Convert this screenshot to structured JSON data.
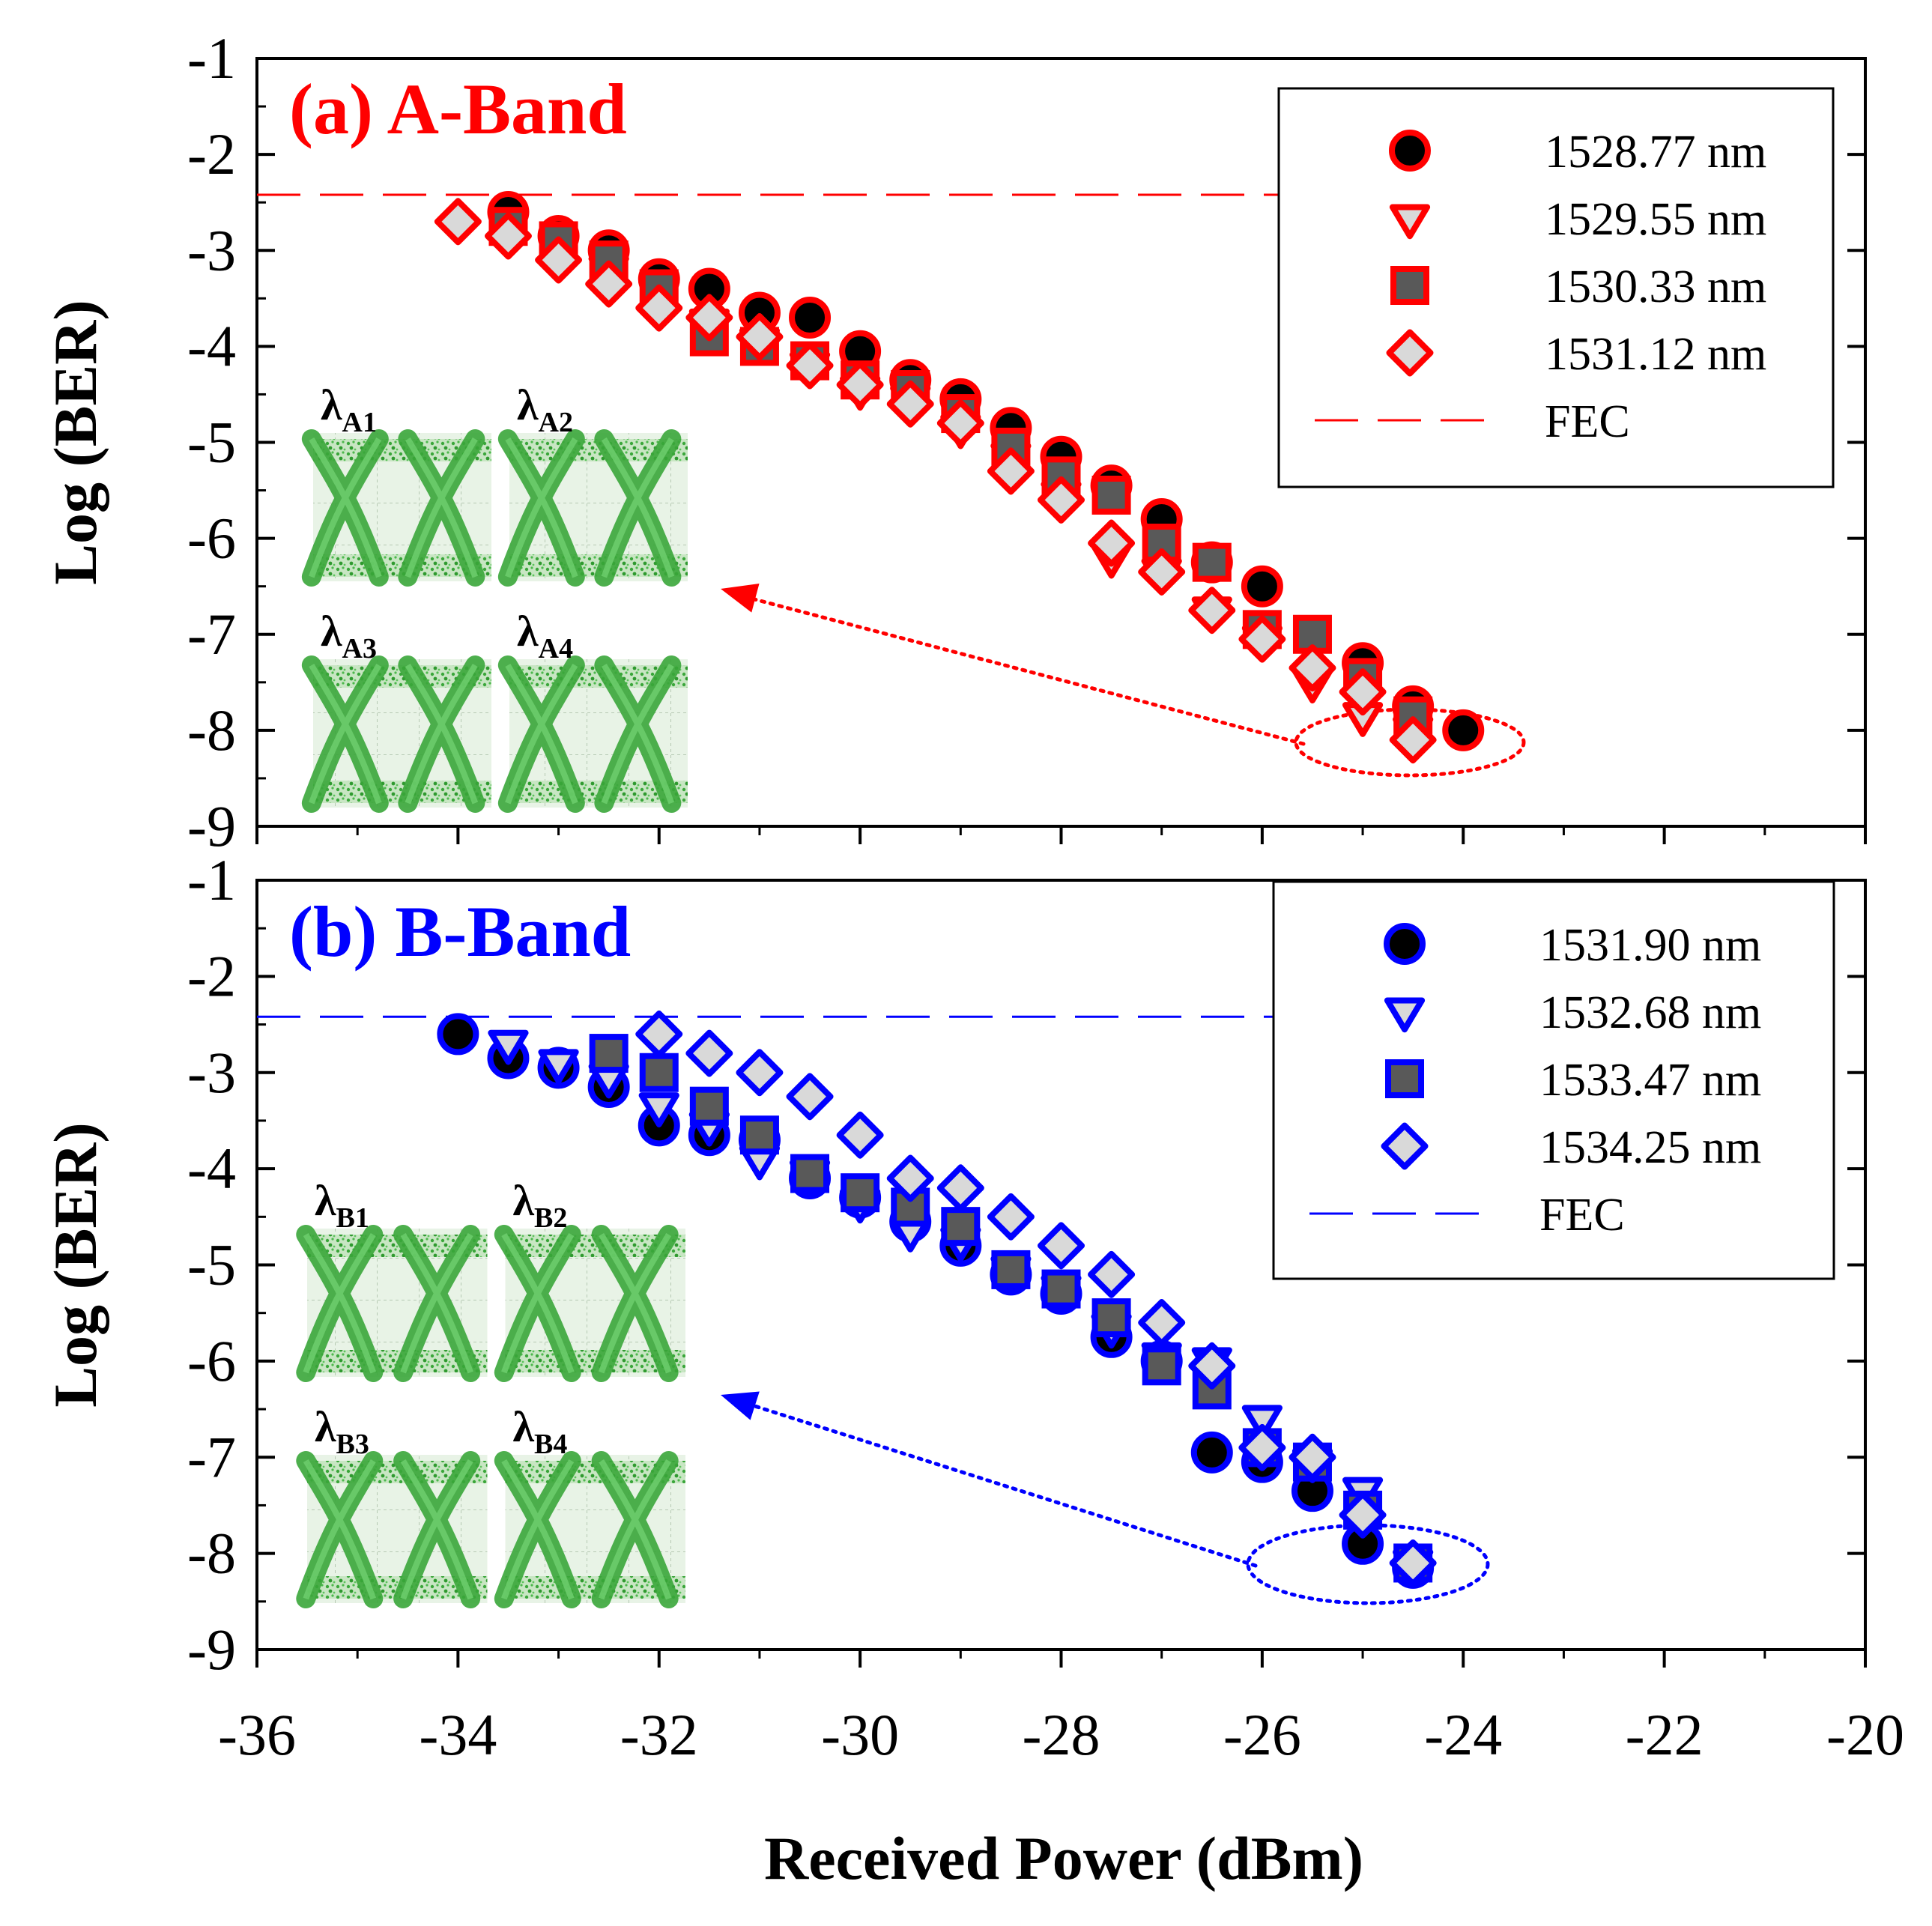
{
  "chart_data": [
    {
      "type": "scatter",
      "panel": "a",
      "title": "(a) A-Band",
      "title_color": "#ff0000",
      "accent": "#ff0000",
      "xlabel": "Received Power (dBm)",
      "ylabel": "Log (BER)",
      "xlim": [
        -36,
        -20
      ],
      "ylim": [
        -9,
        -1
      ],
      "xticks": [
        "-36",
        "-34",
        "-32",
        "-30",
        "-28",
        "-26",
        "-24",
        "-22",
        "-20"
      ],
      "yticks": [
        "-1",
        "-2",
        "-3",
        "-4",
        "-5",
        "-6",
        "-7",
        "-8",
        "-9"
      ],
      "fec_level": -2.42,
      "fec_label": "FEC",
      "legend_position": "top-right",
      "eye_labels": [
        {
          "main": "λ",
          "sub": "A1"
        },
        {
          "main": "λ",
          "sub": "A2"
        },
        {
          "main": "λ",
          "sub": "A3"
        },
        {
          "main": "λ",
          "sub": "A4"
        }
      ],
      "series": [
        {
          "name": "1528.77 nm",
          "marker": "circle",
          "fill": "#000000",
          "x": [
            -33.5,
            -33,
            -32.5,
            -32,
            -31.5,
            -31,
            -30.5,
            -30,
            -29.5,
            -29,
            -28.5,
            -28,
            -27.5,
            -27,
            -26.5,
            -26,
            -25,
            -24.5,
            -24
          ],
          "y": [
            -2.6,
            -2.85,
            -3.0,
            -3.3,
            -3.4,
            -3.65,
            -3.7,
            -4.05,
            -4.35,
            -4.55,
            -4.85,
            -5.15,
            -5.45,
            -5.8,
            -6.25,
            -6.5,
            -7.3,
            -7.75,
            -8.0
          ]
        },
        {
          "name": "1529.55 nm",
          "marker": "triangle-down",
          "fill": "#d9d9d9",
          "x": [
            -33.5,
            -33,
            -32.5,
            -32,
            -31.5,
            -31,
            -30.5,
            -30,
            -29.5,
            -29,
            -28.5,
            -28,
            -27.5,
            -27,
            -26.5,
            -26,
            -25.5,
            -25,
            -24.5
          ],
          "y": [
            -2.75,
            -2.95,
            -3.2,
            -3.4,
            -3.75,
            -3.95,
            -4.2,
            -4.45,
            -4.55,
            -4.85,
            -5.15,
            -5.55,
            -6.2,
            -6.35,
            -6.75,
            -7.05,
            -7.5,
            -7.85,
            -8.0
          ]
        },
        {
          "name": "1530.33 nm",
          "marker": "square",
          "fill": "#595959",
          "x": [
            -33.5,
            -33,
            -32.5,
            -32,
            -31.5,
            -31,
            -30.5,
            -30,
            -29.5,
            -29,
            -28.5,
            -28,
            -27.5,
            -27,
            -26.5,
            -26,
            -25.5,
            -25,
            -24.5
          ],
          "y": [
            -2.75,
            -2.9,
            -3.1,
            -3.4,
            -3.9,
            -4.0,
            -4.15,
            -4.35,
            -4.45,
            -4.7,
            -5.05,
            -5.35,
            -5.55,
            -6.05,
            -6.25,
            -6.95,
            -7.0,
            -7.45,
            -7.85
          ]
        },
        {
          "name": "1531.12 nm",
          "marker": "diamond",
          "fill": "#d9d9d9",
          "x": [
            -34,
            -33.5,
            -33,
            -32.5,
            -32,
            -31.5,
            -31,
            -30.5,
            -30,
            -29.5,
            -29,
            -28.5,
            -28,
            -27.5,
            -27,
            -26.5,
            -26,
            -25.5,
            -25,
            -24.5
          ],
          "y": [
            -2.7,
            -2.85,
            -3.1,
            -3.35,
            -3.6,
            -3.7,
            -3.9,
            -4.2,
            -4.4,
            -4.6,
            -4.8,
            -5.3,
            -5.6,
            -6.05,
            -6.35,
            -6.75,
            -7.05,
            -7.35,
            -7.6,
            -8.1
          ]
        }
      ]
    },
    {
      "type": "scatter",
      "panel": "b",
      "title": "(b) B-Band",
      "title_color": "#0000ff",
      "accent": "#0000ff",
      "xlabel": "Received Power (dBm)",
      "ylabel": "Log (BER)",
      "xlim": [
        -36,
        -20
      ],
      "ylim": [
        -9,
        -1
      ],
      "xticks": [
        "-36",
        "-34",
        "-32",
        "-30",
        "-28",
        "-26",
        "-24",
        "-22",
        "-20"
      ],
      "yticks": [
        "-1",
        "-2",
        "-3",
        "-4",
        "-5",
        "-6",
        "-7",
        "-8",
        "-9"
      ],
      "fec_level": -2.42,
      "fec_label": "FEC",
      "legend_position": "top-right",
      "eye_labels": [
        {
          "main": "λ",
          "sub": "B1"
        },
        {
          "main": "λ",
          "sub": "B2"
        },
        {
          "main": "λ",
          "sub": "B3"
        },
        {
          "main": "λ",
          "sub": "B4"
        }
      ],
      "series": [
        {
          "name": "1531.90 nm",
          "marker": "circle",
          "fill": "#000000",
          "x": [
            -34,
            -33.5,
            -33,
            -32.5,
            -32,
            -31.5,
            -31,
            -30.5,
            -30,
            -29.5,
            -29,
            -28.5,
            -28,
            -27.5,
            -27,
            -26.5,
            -26,
            -25.5,
            -25,
            -24.5
          ],
          "y": [
            -2.6,
            -2.85,
            -2.95,
            -3.15,
            -3.55,
            -3.65,
            -3.7,
            -4.1,
            -4.3,
            -4.55,
            -4.8,
            -5.1,
            -5.3,
            -5.75,
            -6.0,
            -6.95,
            -7.05,
            -7.35,
            -7.9,
            -8.15
          ]
        },
        {
          "name": "1532.68 nm",
          "marker": "triangle-down",
          "fill": "#d9d9d9",
          "x": [
            -33.5,
            -33,
            -32.5,
            -32,
            -31.5,
            -31,
            -30.5,
            -30,
            -29.5,
            -29,
            -28.5,
            -28,
            -27.5,
            -27,
            -26.5,
            -26,
            -25.5,
            -25,
            -24.5
          ],
          "y": [
            -2.7,
            -2.9,
            -3.05,
            -3.35,
            -3.55,
            -3.9,
            -4.05,
            -4.35,
            -4.65,
            -4.75,
            -5.05,
            -5.25,
            -5.65,
            -5.95,
            -6.0,
            -6.6,
            -7.05,
            -7.35,
            -8.1
          ]
        },
        {
          "name": "1533.47 nm",
          "marker": "square",
          "fill": "#595959",
          "x": [
            -32.5,
            -32,
            -31.5,
            -31,
            -30.5,
            -30,
            -29.5,
            -29,
            -28.5,
            -28,
            -27.5,
            -27,
            -26.5,
            -26,
            -25.5,
            -25,
            -24.5
          ],
          "y": [
            -2.8,
            -3.0,
            -3.35,
            -3.65,
            -4.05,
            -4.25,
            -4.4,
            -4.6,
            -5.05,
            -5.25,
            -5.55,
            -6.05,
            -6.3,
            -6.9,
            -7.05,
            -7.55,
            -8.1
          ]
        },
        {
          "name": "1534.25 nm",
          "marker": "diamond",
          "fill": "#d9d9d9",
          "x": [
            -32,
            -31.5,
            -31,
            -30.5,
            -30,
            -29.5,
            -29,
            -28.5,
            -28,
            -27.5,
            -27,
            -26.5,
            -26,
            -25.5,
            -25,
            -24.5
          ],
          "y": [
            -2.6,
            -2.8,
            -3.0,
            -3.25,
            -3.65,
            -4.1,
            -4.2,
            -4.5,
            -4.8,
            -5.1,
            -5.6,
            -6.05,
            -6.9,
            -7.0,
            -7.6,
            -8.1
          ]
        }
      ]
    }
  ]
}
